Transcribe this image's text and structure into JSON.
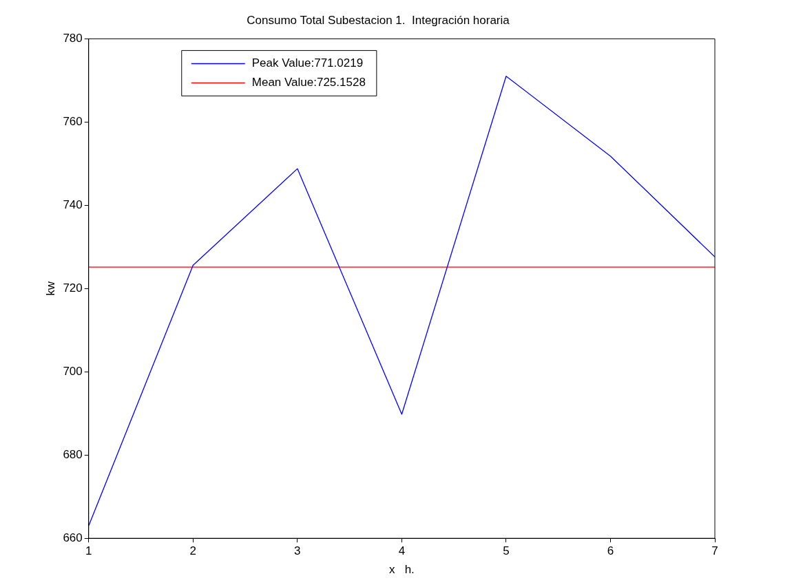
{
  "chart_data": {
    "type": "line",
    "title": "Consumo Total Subestacion 1.  Integración horaria",
    "xlabel": "x   h.",
    "ylabel": "kw",
    "x": [
      1,
      2,
      3,
      4,
      5,
      6,
      7
    ],
    "series": [
      {
        "name": "Peak Value:771.0219",
        "color": "#0000ff",
        "values": [
          663,
          725.6,
          748.8,
          689.8,
          771.0219,
          751.8,
          727.6
        ]
      }
    ],
    "ref_lines": [
      {
        "axis": "y",
        "value": 725.1528,
        "label": "Mean Value:725.1528",
        "color": "#ff0000"
      }
    ],
    "xlim": [
      1,
      7
    ],
    "xticks": [
      1,
      2,
      3,
      4,
      5,
      6,
      7
    ],
    "ylim": [
      660,
      780
    ],
    "yticks": [
      660,
      680,
      700,
      720,
      740,
      760,
      780
    ],
    "grid": false,
    "legend": "top left",
    "marker": "none",
    "line_style": "solid"
  }
}
